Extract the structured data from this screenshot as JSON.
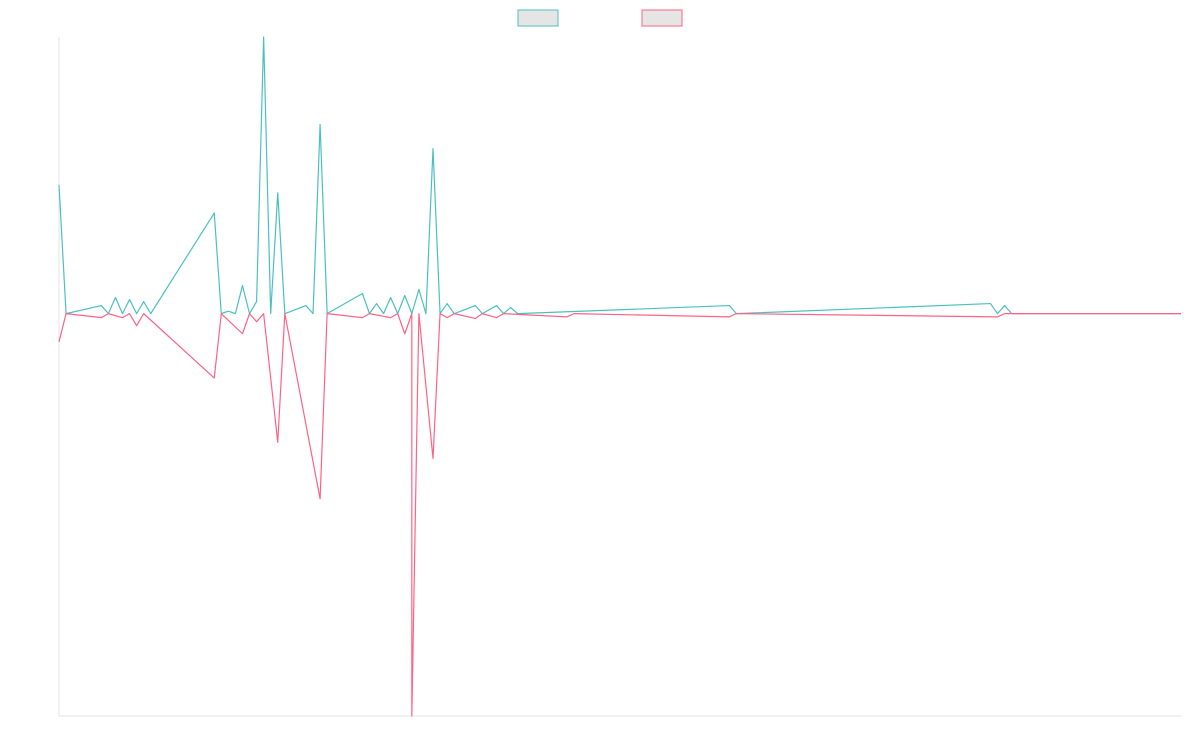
{
  "chart_data": {
    "type": "line",
    "title": "",
    "xlabel": "",
    "ylabel": "",
    "grid": false,
    "legend_position": "top-center",
    "n_points": 160,
    "ylim": [
      -100,
      68.75
    ],
    "series": [
      {
        "name": "",
        "color": "#4bc0c0",
        "fill": "#e5e5e5",
        "points": [
          [
            0,
            32
          ],
          [
            1,
            0
          ],
          [
            6,
            2
          ],
          [
            7,
            0
          ],
          [
            8,
            4
          ],
          [
            9,
            0
          ],
          [
            10,
            3.5
          ],
          [
            11,
            0
          ],
          [
            12,
            3
          ],
          [
            13,
            0
          ],
          [
            22,
            25
          ],
          [
            23,
            0
          ],
          [
            24,
            0.6
          ],
          [
            25,
            0
          ],
          [
            26,
            7
          ],
          [
            27,
            0
          ],
          [
            28,
            3
          ],
          [
            29,
            68.75
          ],
          [
            30,
            0
          ],
          [
            31,
            30
          ],
          [
            32,
            0
          ],
          [
            35,
            2
          ],
          [
            36,
            0
          ],
          [
            37,
            47
          ],
          [
            38,
            0
          ],
          [
            43,
            5
          ],
          [
            44,
            0
          ],
          [
            45,
            2.5
          ],
          [
            46,
            0
          ],
          [
            47,
            4
          ],
          [
            48,
            0
          ],
          [
            49,
            4.5
          ],
          [
            50,
            0
          ],
          [
            51,
            6
          ],
          [
            52,
            0
          ],
          [
            53,
            41
          ],
          [
            54,
            0
          ],
          [
            55,
            2.5
          ],
          [
            56,
            0
          ],
          [
            59,
            2
          ],
          [
            60,
            0
          ],
          [
            62,
            2
          ],
          [
            63,
            0
          ],
          [
            64,
            1.5
          ],
          [
            65,
            0
          ],
          [
            95,
            2
          ],
          [
            96,
            0
          ],
          [
            132,
            2.5
          ],
          [
            133,
            0
          ],
          [
            134,
            2
          ],
          [
            135,
            0
          ]
        ]
      },
      {
        "name": "",
        "color": "#ff6384",
        "fill": "#e5e5e5",
        "points": [
          [
            0,
            -7
          ],
          [
            1,
            0
          ],
          [
            6,
            -1
          ],
          [
            7,
            0
          ],
          [
            9,
            -1
          ],
          [
            10,
            0
          ],
          [
            11,
            -3
          ],
          [
            12,
            0
          ],
          [
            22,
            -16
          ],
          [
            23,
            0
          ],
          [
            26,
            -5
          ],
          [
            27,
            0
          ],
          [
            28,
            -2
          ],
          [
            29,
            0
          ],
          [
            31,
            -32
          ],
          [
            32,
            0
          ],
          [
            37,
            -46
          ],
          [
            38,
            0
          ],
          [
            43,
            -1
          ],
          [
            44,
            0
          ],
          [
            47,
            -1
          ],
          [
            48,
            0
          ],
          [
            49,
            -5
          ],
          [
            50,
            0
          ],
          [
            50,
            -100
          ],
          [
            51,
            0
          ],
          [
            53,
            -36
          ],
          [
            54,
            0
          ],
          [
            55,
            -1
          ],
          [
            56,
            0
          ],
          [
            59,
            -1.2
          ],
          [
            60,
            0
          ],
          [
            62,
            -1
          ],
          [
            63,
            0
          ],
          [
            72,
            -0.8
          ],
          [
            73,
            0
          ],
          [
            95,
            -0.8
          ],
          [
            96,
            0
          ],
          [
            133,
            -0.8
          ],
          [
            134,
            0
          ]
        ]
      }
    ]
  }
}
